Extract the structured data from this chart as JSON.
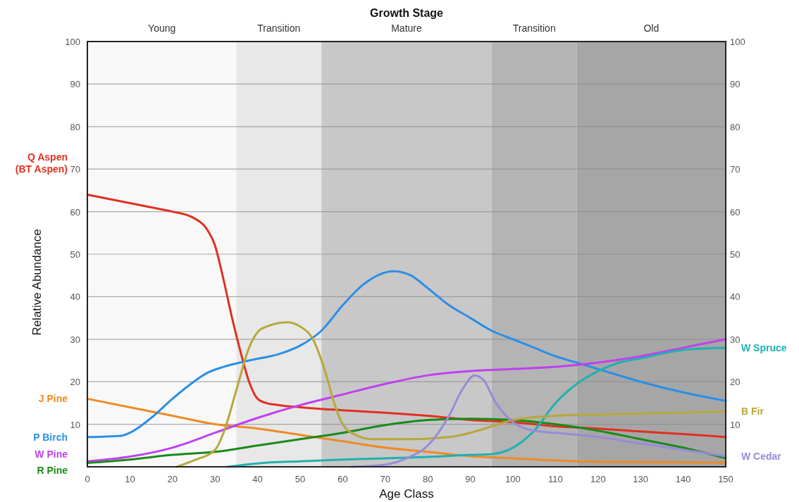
{
  "chart_data": {
    "type": "line",
    "xlabel": "Age Class",
    "ylabel": "Relative Abundance",
    "x2label": "Growth Stage",
    "xlim": [
      0,
      150
    ],
    "xticks": [
      0,
      10,
      20,
      30,
      40,
      50,
      60,
      70,
      80,
      90,
      100,
      110,
      120,
      130,
      140,
      150
    ],
    "ylim": [
      0,
      100
    ],
    "yticks": [
      {
        "value": 0,
        "label": null
      },
      10,
      20,
      30,
      40,
      50,
      60,
      70,
      80,
      90,
      100
    ],
    "y2lim": [
      0,
      100
    ],
    "y2ticks": [
      10,
      20,
      30,
      40,
      50,
      60,
      70,
      80,
      90,
      100
    ],
    "grid": "y",
    "legend": false,
    "marker": "none",
    "line_style": "solid",
    "bands": [
      {
        "axis": "x",
        "from": 0,
        "to": 35,
        "label": "Young",
        "color": "#f8f8f8"
      },
      {
        "axis": "x",
        "from": 35,
        "to": 55,
        "label": "Transition",
        "color": "#e8e8e8"
      },
      {
        "axis": "x",
        "from": 55,
        "to": 95,
        "label": "Mature",
        "color": "#c8c8c8"
      },
      {
        "axis": "x",
        "from": 95,
        "to": 115,
        "label": "Transition",
        "color": "#b4b4b4"
      },
      {
        "axis": "x",
        "from": 115,
        "to": 150,
        "label": "Old",
        "color": "#a6a6a6"
      }
    ],
    "series": [
      {
        "name": "Q Aspen (BT Aspen)",
        "color": "#e03020",
        "x": [
          0,
          5,
          10,
          15,
          20,
          25,
          28,
          30,
          32,
          34,
          36,
          38,
          40,
          42,
          45,
          50,
          60,
          70,
          80,
          90,
          100,
          110,
          120,
          130,
          140,
          150
        ],
        "values": [
          64,
          63,
          62,
          61,
          60,
          58.5,
          56,
          52,
          44,
          35,
          27,
          20,
          16,
          15,
          14.5,
          14,
          13.3,
          12.7,
          12,
          11,
          10.5,
          9.5,
          9,
          8.3,
          7.7,
          7
        ]
      },
      {
        "name": "J Pine",
        "color": "#f08a24",
        "x": [
          0,
          10,
          20,
          30,
          40,
          50,
          60,
          70,
          80,
          90,
          100,
          110,
          120,
          150
        ],
        "values": [
          16,
          14,
          12,
          10,
          9,
          7.5,
          6,
          4.5,
          3.5,
          2.5,
          2,
          1.5,
          1.2,
          1
        ]
      },
      {
        "name": "P Birch",
        "color": "#2a8fe6",
        "x": [
          0,
          8,
          10,
          15,
          20,
          25,
          28,
          32,
          38,
          45,
          50,
          55,
          60,
          65,
          72,
          76,
          80,
          85,
          90,
          95,
          100,
          105,
          110,
          115,
          120,
          130,
          140,
          150
        ],
        "values": [
          7,
          7.3,
          8,
          11.5,
          16,
          20,
          22,
          23.5,
          25,
          26.5,
          28.5,
          32,
          38,
          43,
          46,
          45,
          42,
          38,
          35,
          32,
          30,
          28,
          26,
          24.5,
          23,
          20,
          17.5,
          15.5
        ]
      },
      {
        "name": "W Pine",
        "color": "#c040f0",
        "x": [
          0,
          10,
          20,
          30,
          40,
          50,
          60,
          70,
          80,
          90,
          100,
          110,
          120,
          130,
          140,
          150
        ],
        "values": [
          1.3,
          2.4,
          4.5,
          8,
          11.5,
          14.5,
          17,
          19.5,
          21.5,
          22.5,
          23,
          23.5,
          24.5,
          26,
          28,
          30
        ]
      },
      {
        "name": "R Pine",
        "color": "#1a8a1a",
        "x": [
          0,
          10,
          20,
          30,
          40,
          50,
          60,
          70,
          80,
          90,
          100,
          110,
          120,
          130,
          140,
          150
        ],
        "values": [
          0.9,
          1.7,
          2.8,
          3.5,
          5,
          6.5,
          8,
          9.8,
          11,
          11.3,
          11,
          10,
          8.5,
          6.5,
          4.5,
          2
        ]
      },
      {
        "name": "W Spruce",
        "color": "#20b0b0",
        "x": [
          33,
          40,
          50,
          60,
          70,
          80,
          90,
          95,
          100,
          105,
          110,
          115,
          120,
          125,
          130,
          140,
          150
        ],
        "values": [
          0,
          0.8,
          1.3,
          1.7,
          2,
          2.3,
          2.8,
          3,
          4.5,
          8.5,
          15,
          19.5,
          22.5,
          24.5,
          25.5,
          27.5,
          28
        ]
      },
      {
        "name": "B Fir",
        "color": "#b8a83a",
        "x": [
          21,
          25,
          30,
          32,
          35,
          38,
          41,
          47,
          50,
          53,
          56,
          58,
          60,
          63,
          67,
          75,
          85,
          90,
          95,
          100,
          110,
          120,
          130,
          150
        ],
        "values": [
          0,
          1.5,
          4,
          8,
          18,
          28,
          32.5,
          34,
          33,
          30,
          22,
          15,
          10,
          7.5,
          6.5,
          6.5,
          7,
          8,
          9.5,
          11,
          12,
          12.3,
          12.5,
          13
        ]
      },
      {
        "name": "W Cedar",
        "color": "#9a8ad8",
        "x": [
          62,
          70,
          75,
          80,
          85,
          88,
          91,
          93,
          96,
          100,
          105,
          110,
          120,
          130,
          140,
          150
        ],
        "values": [
          0,
          0.5,
          2,
          5,
          12,
          18,
          21.5,
          20.5,
          15,
          10.5,
          8.5,
          8,
          7,
          5.5,
          4,
          2.5
        ]
      }
    ]
  }
}
